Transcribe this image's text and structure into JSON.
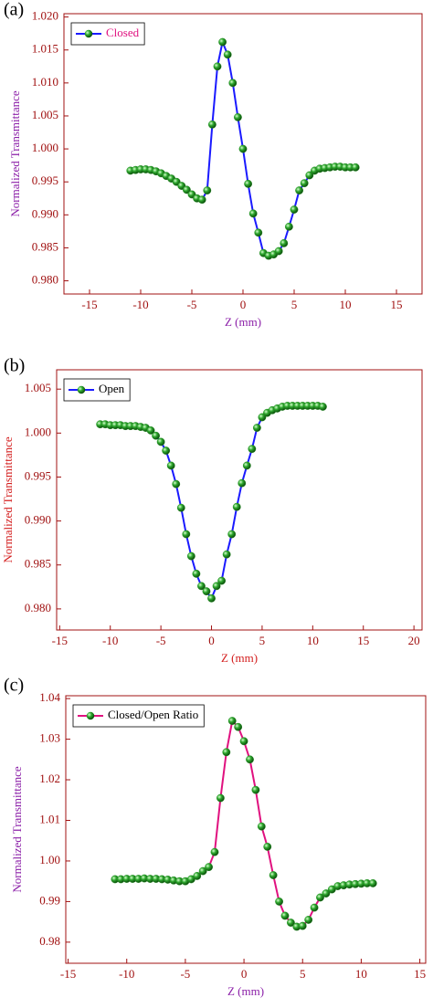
{
  "chart_data": [
    {
      "type": "line",
      "label": "(a)",
      "xlabel": "Z (mm)",
      "ylabel": "Normalized Transmittance",
      "x": [
        -11,
        -10.5,
        -10,
        -9.5,
        -9,
        -8.5,
        -8,
        -7.5,
        -7,
        -6.5,
        -6,
        -5.5,
        -5,
        -4.5,
        -4,
        -3.5,
        -3,
        -2.5,
        -2,
        -1.5,
        -1,
        -0.5,
        0,
        0.5,
        1,
        1.5,
        2,
        2.5,
        3,
        3.5,
        4,
        4.5,
        5,
        5.5,
        6,
        6.5,
        7,
        7.5,
        8,
        8.5,
        9,
        9.5,
        10,
        10.5,
        11
      ],
      "series": [
        {
          "name": "Closed",
          "color": "#1a1aff",
          "values": [
            0.9967,
            0.9968,
            0.9969,
            0.9969,
            0.9968,
            0.9966,
            0.9963,
            0.9959,
            0.9955,
            0.995,
            0.9944,
            0.9938,
            0.9931,
            0.9925,
            0.9923,
            0.9937,
            1.0037,
            1.0125,
            1.0162,
            1.0143,
            1.01,
            1.0048,
            1.0,
            0.9947,
            0.9902,
            0.9873,
            0.9842,
            0.9838,
            0.984,
            0.9845,
            0.9857,
            0.9882,
            0.9908,
            0.9937,
            0.9948,
            0.996,
            0.9967,
            0.997,
            0.9971,
            0.9972,
            0.9973,
            0.9973,
            0.9972,
            0.9972,
            0.9972
          ]
        }
      ],
      "marker_color": "#1f8a1f",
      "legend_text_color": "#e0117f",
      "ylabel_color": "#8b1fa8",
      "xlabel_color": "#8b1fa8",
      "xlim": [
        -17.5,
        17.5
      ],
      "ylim": [
        0.978,
        1.0205
      ],
      "xticks": [
        -15,
        -10,
        -5,
        0,
        5,
        10,
        15
      ],
      "yticks": [
        {
          "value": 0.98,
          "label": "0.980"
        },
        0.985,
        {
          "value": 0.99,
          "label": "0.990"
        },
        0.995,
        {
          "value": 1.0,
          "label": "1.000"
        },
        1.005,
        {
          "value": 1.01,
          "label": "1.010"
        },
        1.015,
        {
          "value": 1.02,
          "label": "1.020"
        }
      ],
      "legend": "upper left"
    },
    {
      "type": "line",
      "label": "(b)",
      "xlabel": "Z (mm)",
      "ylabel": "Normalized Transmittance",
      "x": [
        -11,
        -10.5,
        -10,
        -9.5,
        -9,
        -8.5,
        -8,
        -7.5,
        -7,
        -6.5,
        -6,
        -5.5,
        -5,
        -4.5,
        -4,
        -3.5,
        -3,
        -2.5,
        -2,
        -1.5,
        -1,
        -0.5,
        0,
        0.5,
        1,
        1.5,
        2,
        2.5,
        3,
        3.5,
        4,
        4.5,
        5,
        5.5,
        6,
        6.5,
        7,
        7.5,
        8,
        8.5,
        9,
        9.5,
        10,
        10.5,
        11
      ],
      "series": [
        {
          "name": "Open",
          "color": "#1a1aff",
          "values": [
            1.001,
            1.001,
            1.0009,
            1.0009,
            1.0009,
            1.0008,
            1.0008,
            1.0008,
            1.0007,
            1.0006,
            1.0003,
            0.9997,
            0.999,
            0.998,
            0.9963,
            0.9942,
            0.9915,
            0.9885,
            0.986,
            0.984,
            0.9826,
            0.982,
            0.9812,
            0.9826,
            0.9832,
            0.9862,
            0.9885,
            0.9916,
            0.9943,
            0.9963,
            0.9982,
            1.0006,
            1.0018,
            1.0023,
            1.0026,
            1.0028,
            1.003,
            1.0031,
            1.0031,
            1.0031,
            1.0031,
            1.0031,
            1.0031,
            1.0031,
            1.003
          ]
        }
      ],
      "marker_color": "#1f8a1f",
      "legend_text_color": "#000000",
      "ylabel_color": "#d42020",
      "xlabel_color": "#d42020",
      "xlim": [
        -15.3,
        20.8
      ],
      "ylim": [
        0.9776,
        1.0072
      ],
      "xticks": [
        -15,
        -10,
        -5,
        0,
        5,
        10,
        15,
        20
      ],
      "yticks": [
        {
          "value": 0.98,
          "label": "0.980"
        },
        0.985,
        {
          "value": 0.99,
          "label": "0.990"
        },
        0.995,
        {
          "value": 1.0,
          "label": "1.000"
        },
        1.005
      ],
      "legend": "upper left"
    },
    {
      "type": "line",
      "label": "(c)",
      "xlabel": "Z (mm)",
      "ylabel": "Normalized Transmittance",
      "x": [
        -11,
        -10.5,
        -10,
        -9.5,
        -9,
        -8.5,
        -8,
        -7.5,
        -7,
        -6.5,
        -6,
        -5.5,
        -5,
        -4.5,
        -4,
        -3.5,
        -3,
        -2.5,
        -2,
        -1.5,
        -1,
        -0.5,
        0,
        0.5,
        1,
        1.5,
        2,
        2.5,
        3,
        3.5,
        4,
        4.5,
        5,
        5.5,
        6,
        6.5,
        7,
        7.5,
        8,
        8.5,
        9,
        9.5,
        10,
        10.5,
        11
      ],
      "series": [
        {
          "name": "Closed/Open Ratio",
          "color": "#e0117f",
          "values": [
            0.9955,
            0.9955,
            0.9956,
            0.9956,
            0.9956,
            0.9957,
            0.9956,
            0.9956,
            0.9955,
            0.9954,
            0.9952,
            0.995,
            0.995,
            0.9955,
            0.9963,
            0.9975,
            0.9985,
            1.0022,
            1.0155,
            1.0268,
            1.0345,
            1.033,
            1.0295,
            1.025,
            1.0175,
            1.0085,
            1.0035,
            0.9965,
            0.99,
            0.9865,
            0.9848,
            0.9838,
            0.984,
            0.9855,
            0.9885,
            0.991,
            0.992,
            0.993,
            0.9938,
            0.994,
            0.9942,
            0.9943,
            0.9944,
            0.9945,
            0.9945
          ]
        }
      ],
      "marker_color": "#1f8a1f",
      "legend_text_color": "#000000",
      "ylabel_color": "#8b1fa8",
      "xlabel_color": "#8b1fa8",
      "xlim": [
        -15.2,
        15.5
      ],
      "ylim": [
        0.9748,
        1.0407
      ],
      "xticks": [
        -15,
        -10,
        -5,
        0,
        5,
        10,
        15
      ],
      "yticks": [
        0.98,
        0.99,
        {
          "value": 1.0,
          "label": "1.00"
        },
        1.01,
        1.02,
        1.03,
        1.04
      ],
      "legend": "upper left"
    }
  ]
}
